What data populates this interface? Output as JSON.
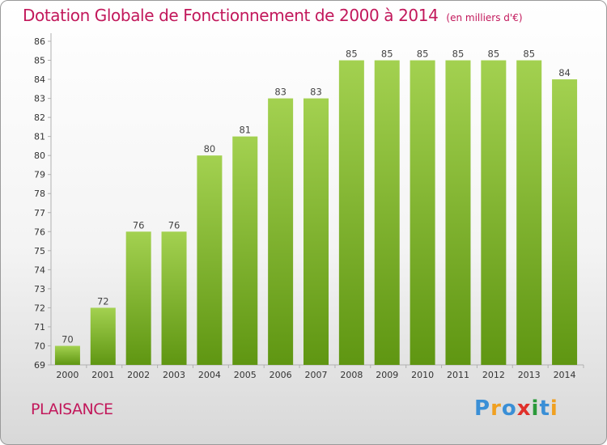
{
  "chart_data": {
    "type": "bar",
    "title": "Dotation Globale de Fonctionnement de 2000 à 2014",
    "unit_label": "(en milliers d'€)",
    "categories": [
      "2000",
      "2001",
      "2002",
      "2003",
      "2004",
      "2005",
      "2006",
      "2007",
      "2008",
      "2009",
      "2010",
      "2011",
      "2012",
      "2013",
      "2014"
    ],
    "values": [
      70,
      72,
      76,
      76,
      80,
      81,
      83,
      83,
      85,
      85,
      85,
      85,
      85,
      85,
      84
    ],
    "ylim": [
      69,
      86
    ],
    "yticks": [
      69,
      70,
      71,
      72,
      73,
      74,
      75,
      76,
      77,
      78,
      79,
      80,
      81,
      82,
      83,
      84,
      85,
      86
    ],
    "grid": false,
    "colors": {
      "bar_top": "#a3d150",
      "bar_bottom": "#5f9612",
      "title": "#c2185b"
    }
  },
  "footer": {
    "commune": "PLAISANCE",
    "logo": {
      "letters": [
        "P",
        "r",
        "o",
        "x",
        "i",
        "t",
        "i"
      ],
      "colors": [
        "#3a8fd6",
        "#f0a020",
        "#3a8fd6",
        "#e0302a",
        "#2a9a3a",
        "#3a8fd6",
        "#f0a020"
      ]
    }
  }
}
